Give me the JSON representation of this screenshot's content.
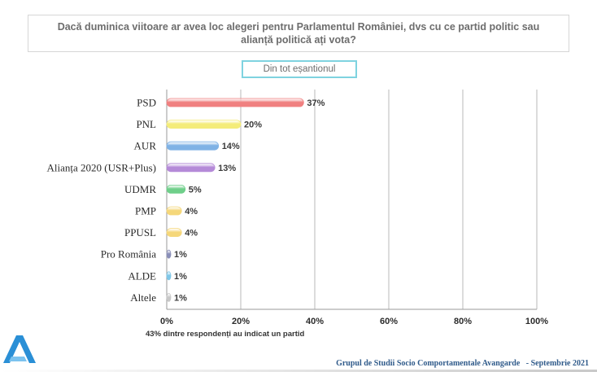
{
  "question": "Dacă duminica viitoare ar avea loc alegeri pentru Parlamentul României, dvs cu ce partid politic sau alianță politică ați vota?",
  "sample_label": "Din tot eșantionul",
  "note": "43% dintre respondenți au indicat un partid",
  "footer": "Grupul de Studii Socio Comportamentale Avangarde   - Septembrie 2021",
  "chart_data": {
    "type": "bar",
    "orientation": "horizontal",
    "title": "",
    "xlabel": "",
    "ylabel": "",
    "xlim": [
      0,
      100
    ],
    "x_ticks": [
      0,
      20,
      40,
      60,
      80,
      100
    ],
    "x_tick_labels": [
      "0%",
      "20%",
      "40%",
      "60%",
      "80%",
      "100%"
    ],
    "grid": "vertical",
    "categories": [
      "PSD",
      "PNL",
      "AUR",
      "Alianța 2020 (USR+Plus)",
      "UDMR",
      "PMP",
      "PPUSL",
      "Pro România",
      "ALDE",
      "Altele"
    ],
    "values": [
      37,
      20,
      14,
      13,
      5,
      4,
      4,
      1,
      1,
      1
    ],
    "value_labels": [
      "37%",
      "20%",
      "14%",
      "13%",
      "5%",
      "4%",
      "4%",
      "1%",
      "1%",
      "1%"
    ],
    "colors": [
      "#f08080",
      "#f4ec7a",
      "#7fb2e5",
      "#b58ad8",
      "#6fcf8a",
      "#f5d77a",
      "#f5d77a",
      "#8a8fb8",
      "#7fc7e8",
      "#c8c8c8"
    ]
  }
}
